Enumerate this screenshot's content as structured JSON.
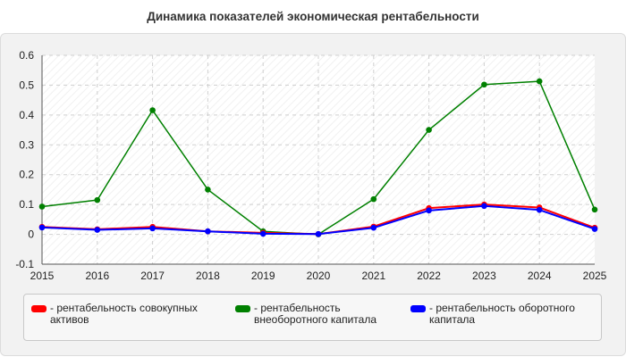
{
  "chart_data": {
    "type": "line",
    "title": "Динамика показателей экономическая рентабельности",
    "x": [
      "2015",
      "2016",
      "2017",
      "2018",
      "2019",
      "2020",
      "2021",
      "2022",
      "2023",
      "2024",
      "2025"
    ],
    "ylim": [
      -0.1,
      0.6
    ],
    "yticks": [
      "-0.1",
      "0",
      "0.1",
      "0.2",
      "0.3",
      "0.4",
      "0.5",
      "0.6"
    ],
    "grid": true,
    "legend_position": "bottom",
    "series": [
      {
        "name": "- рентабельность совокупных активов",
        "color": "#ff0000",
        "values": [
          0.025,
          0.017,
          0.025,
          0.01,
          0.005,
          0.001,
          0.026,
          0.088,
          0.1,
          0.09,
          0.022
        ]
      },
      {
        "name": "- рентабельность внеоборотного капитала",
        "color": "#008000",
        "values": [
          0.093,
          0.115,
          0.416,
          0.15,
          0.01,
          0.0,
          0.118,
          0.35,
          0.502,
          0.513,
          0.083
        ]
      },
      {
        "name": "- рентабельность оборотного капитала",
        "color": "#0000ff",
        "values": [
          0.023,
          0.015,
          0.02,
          0.01,
          0.002,
          0.001,
          0.022,
          0.08,
          0.095,
          0.082,
          0.018
        ]
      }
    ]
  }
}
